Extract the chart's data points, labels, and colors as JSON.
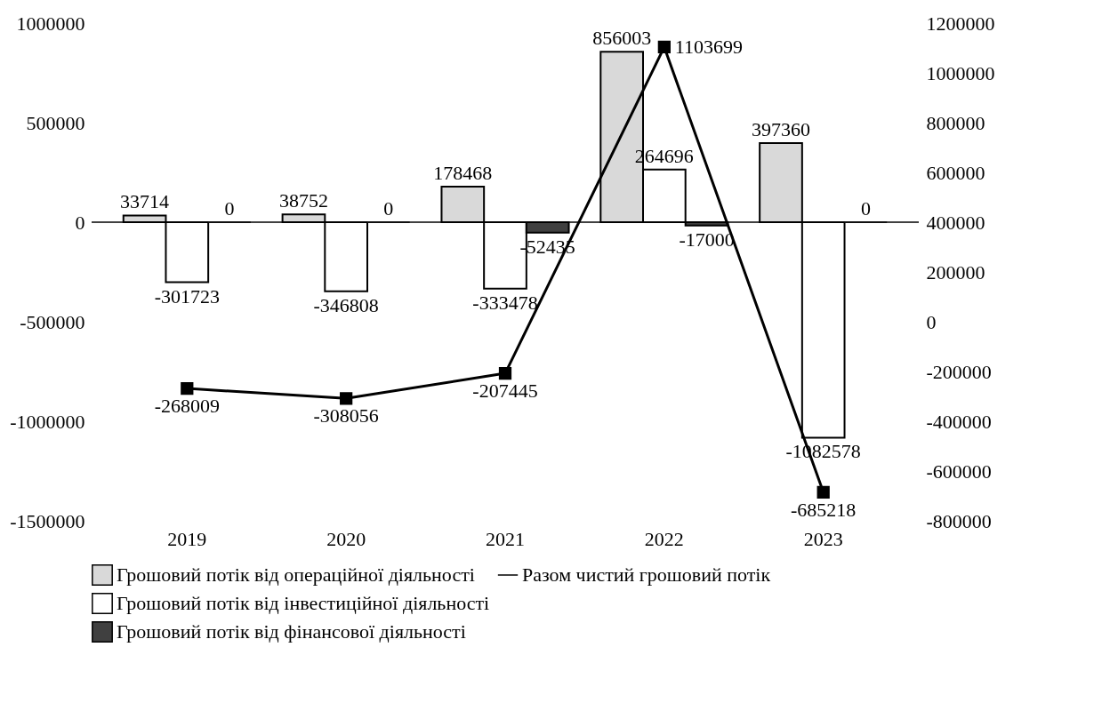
{
  "chart_data": {
    "type": "bar",
    "categories": [
      "2019",
      "2020",
      "2021",
      "2022",
      "2023"
    ],
    "series": [
      {
        "name": "Грошовий потік від операційної діяльності",
        "color": "#d9d9d9",
        "values": [
          33714,
          38752,
          178468,
          856003,
          397360
        ]
      },
      {
        "name": "Грошовий потік від інвестиційної діяльності",
        "color": "#ffffff",
        "values": [
          -301723,
          -346808,
          -333478,
          264696,
          -1082578
        ]
      },
      {
        "name": "Грошовий потік від фінансової діяльності",
        "color": "#404040",
        "values": [
          0,
          0,
          -52435,
          -17000,
          0
        ]
      },
      {
        "name": "Разом чистий грошовий потік",
        "color": "#000000",
        "type": "line",
        "axis": "y2",
        "marker": "square",
        "values": [
          -268009,
          -308056,
          -207445,
          1103699,
          -685218
        ]
      }
    ],
    "ylim": [
      -1500000,
      1000000
    ],
    "yticks": [
      -1500000,
      -1000000,
      -500000,
      0,
      500000,
      1000000
    ],
    "y2lim": [
      -800000,
      1200000
    ],
    "y2ticks": [
      -800000,
      -600000,
      -400000,
      -200000,
      0,
      200000,
      400000,
      600000,
      800000,
      1000000,
      1200000
    ],
    "ref_lines": [
      {
        "axis": "y",
        "value": 0,
        "color": "#000000"
      }
    ],
    "data_labels": true,
    "grid": false,
    "legend": "bottom"
  }
}
